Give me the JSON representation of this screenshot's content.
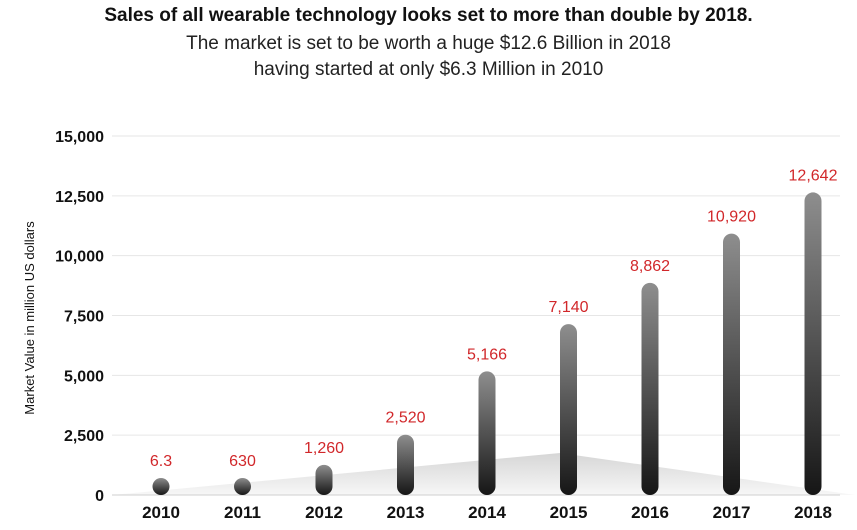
{
  "chart_data": {
    "type": "bar",
    "title": "Sales of all wearable technology looks set to more than double by 2018.",
    "subtitle": [
      "The market is set to be worth a huge $12.6 Billion in 2018",
      "having started at only $6.3 Million in 2010"
    ],
    "xlabel": "",
    "ylabel": "Market Value in million US dollars",
    "categories": [
      "2010",
      "2011",
      "2012",
      "2013",
      "2014",
      "2015",
      "2016",
      "2017",
      "2018"
    ],
    "values": [
      6.3,
      630,
      1260,
      2520,
      5166,
      7140,
      8862,
      10920,
      12642
    ],
    "data_labels": [
      "6.3",
      "630",
      "1,260",
      "2,520",
      "5,166",
      "7,140",
      "8,862",
      "10,920",
      "12,642"
    ],
    "yticks": [
      0,
      2500,
      5000,
      7500,
      10000,
      12500,
      15000
    ],
    "ytick_labels": [
      "0",
      "2,500",
      "5,000",
      "7,500",
      "10,000",
      "12,500",
      "15,000"
    ],
    "ylim": [
      0,
      15000
    ],
    "grid": true,
    "legend": "none",
    "colors": {
      "bar_top": "#8e8e8e",
      "bar_bottom": "#161616",
      "data_label": "#d1272a",
      "grid": "#e6e6e6",
      "backdrop": "#d9d9d9"
    }
  }
}
